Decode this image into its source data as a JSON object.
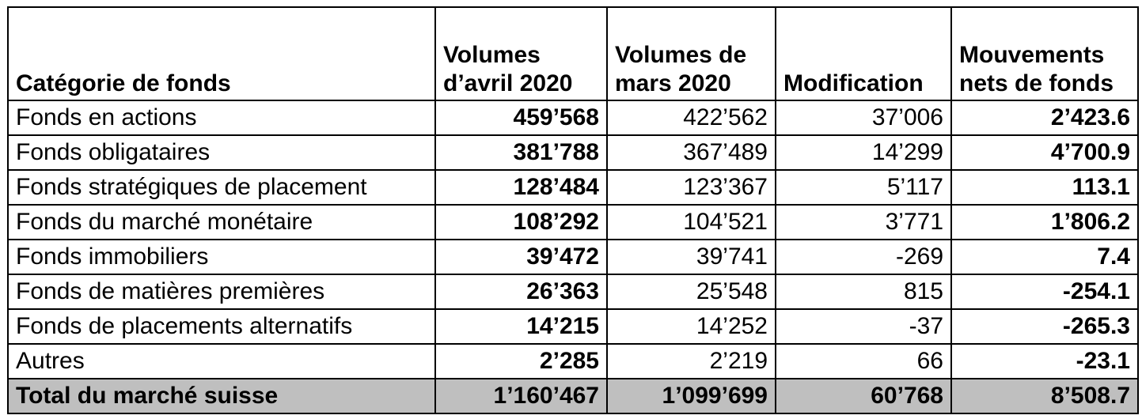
{
  "headers": [
    "Catégorie de fonds",
    "Volumes d’avril 2020",
    "Volumes de mars 2020",
    "Modification",
    "Mouvements nets de fonds"
  ],
  "rows": [
    {
      "cat": "Fonds en actions",
      "apr": "459’568",
      "mar": "422’562",
      "mod": "37’006",
      "net": "2’423.6"
    },
    {
      "cat": "Fonds obligataires",
      "apr": "381’788",
      "mar": "367’489",
      "mod": "14’299",
      "net": "4’700.9"
    },
    {
      "cat": "Fonds stratégiques de placement",
      "apr": "128’484",
      "mar": "123’367",
      "mod": "5’117",
      "net": "113.1"
    },
    {
      "cat": "Fonds du marché monétaire",
      "apr": "108’292",
      "mar": "104’521",
      "mod": "3’771",
      "net": "1’806.2"
    },
    {
      "cat": "Fonds immobiliers",
      "apr": "39’472",
      "mar": "39’741",
      "mod": "-269",
      "net": "7.4"
    },
    {
      "cat": "Fonds de matières premières",
      "apr": "26’363",
      "mar": "25’548",
      "mod": "815",
      "net": "-254.1"
    },
    {
      "cat": "Fonds de placements alternatifs",
      "apr": "14’215",
      "mar": "14’252",
      "mod": "-37",
      "net": "-265.3"
    },
    {
      "cat": "Autres",
      "apr": "2’285",
      "mar": "2’219",
      "mod": "66",
      "net": "-23.1"
    }
  ],
  "total": {
    "cat": "Total du marché suisse",
    "apr": "1’160’467",
    "mar": "1’099’699",
    "mod": "60’768",
    "net": "8’508.7"
  },
  "colors": {
    "total_row_bg": "#bfbfbf"
  }
}
